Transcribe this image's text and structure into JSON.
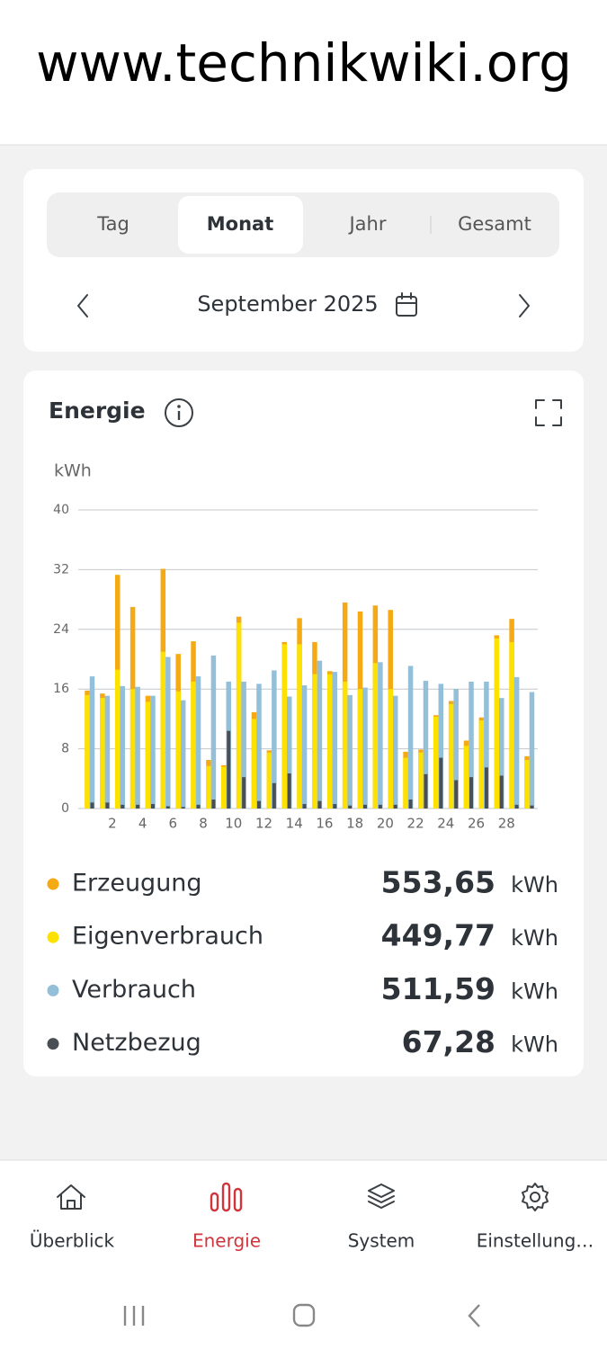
{
  "header": {
    "title": "www.technikwiki.org"
  },
  "tabs": [
    "Tag",
    "Monat",
    "Jahr",
    "Gesamt"
  ],
  "selected_tab": 1,
  "period": "September 2025",
  "card_title": "Energie",
  "chart_data": {
    "type": "bar",
    "y_label": "kWh",
    "x": [
      1,
      2,
      3,
      4,
      5,
      6,
      7,
      8,
      9,
      10,
      11,
      12,
      13,
      14,
      15,
      16,
      17,
      18,
      19,
      20,
      21,
      22,
      23,
      24,
      25,
      26,
      27,
      28,
      29,
      30
    ],
    "xlim": [
      0.5,
      30.5
    ],
    "xticks": [
      2,
      4,
      6,
      8,
      10,
      12,
      14,
      16,
      18,
      20,
      22,
      24,
      26,
      28
    ],
    "ylim": [
      0,
      40
    ],
    "yticks": [
      0,
      8,
      16,
      24,
      32,
      40
    ],
    "grid": true,
    "series": [
      {
        "name": "Erzeugung",
        "color": "#f5a913",
        "total": "553,65",
        "values": [
          15.8,
          15.4,
          31.3,
          27.0,
          15.1,
          32.1,
          20.7,
          22.4,
          6.5,
          5.8,
          25.7,
          12.9,
          7.8,
          22.3,
          25.5,
          22.3,
          18.4,
          27.6,
          26.4,
          27.2,
          26.6,
          7.6,
          7.9,
          12.5,
          14.4,
          9.1,
          12.2,
          23.2,
          25.4,
          7.0
        ]
      },
      {
        "name": "Eigenverbrauch",
        "color": "#fde200",
        "total": "449,77",
        "values": [
          15.2,
          14.8,
          18.6,
          16.0,
          14.3,
          21.0,
          15.7,
          17.0,
          5.7,
          5.6,
          24.9,
          12.0,
          7.5,
          22.0,
          22.0,
          18.0,
          18.0,
          17.0,
          16.0,
          19.5,
          16.0,
          6.8,
          7.5,
          12.3,
          14.0,
          8.4,
          11.8,
          22.8,
          22.3,
          6.5
        ]
      },
      {
        "name": "Verbrauch",
        "color": "#93bfd8",
        "total": "511,59",
        "values": [
          17.7,
          15.1,
          16.4,
          16.3,
          15.1,
          20.3,
          14.5,
          17.7,
          20.5,
          17.0,
          17.0,
          16.7,
          18.5,
          15.0,
          16.5,
          19.8,
          18.3,
          15.2,
          16.2,
          19.6,
          15.1,
          19.1,
          17.1,
          16.7,
          16.0,
          17.0,
          17.0,
          14.8,
          17.6,
          15.6
        ]
      },
      {
        "name": "Netzbezug",
        "color": "#4a4f55",
        "total": "67,28",
        "values": [
          0.8,
          0.8,
          0.5,
          0.5,
          0.6,
          0.3,
          0.2,
          0.5,
          1.2,
          10.4,
          4.2,
          1.0,
          3.4,
          4.7,
          0.6,
          1.0,
          0.6,
          0.4,
          0.5,
          0.5,
          0.5,
          1.2,
          4.6,
          6.8,
          3.8,
          4.2,
          5.5,
          4.4,
          0.5,
          0.4
        ]
      }
    ]
  },
  "totals_unit": "kWh",
  "nav": [
    "Überblick",
    "Energie",
    "System",
    "Einstellung…"
  ],
  "active_nav": 1
}
